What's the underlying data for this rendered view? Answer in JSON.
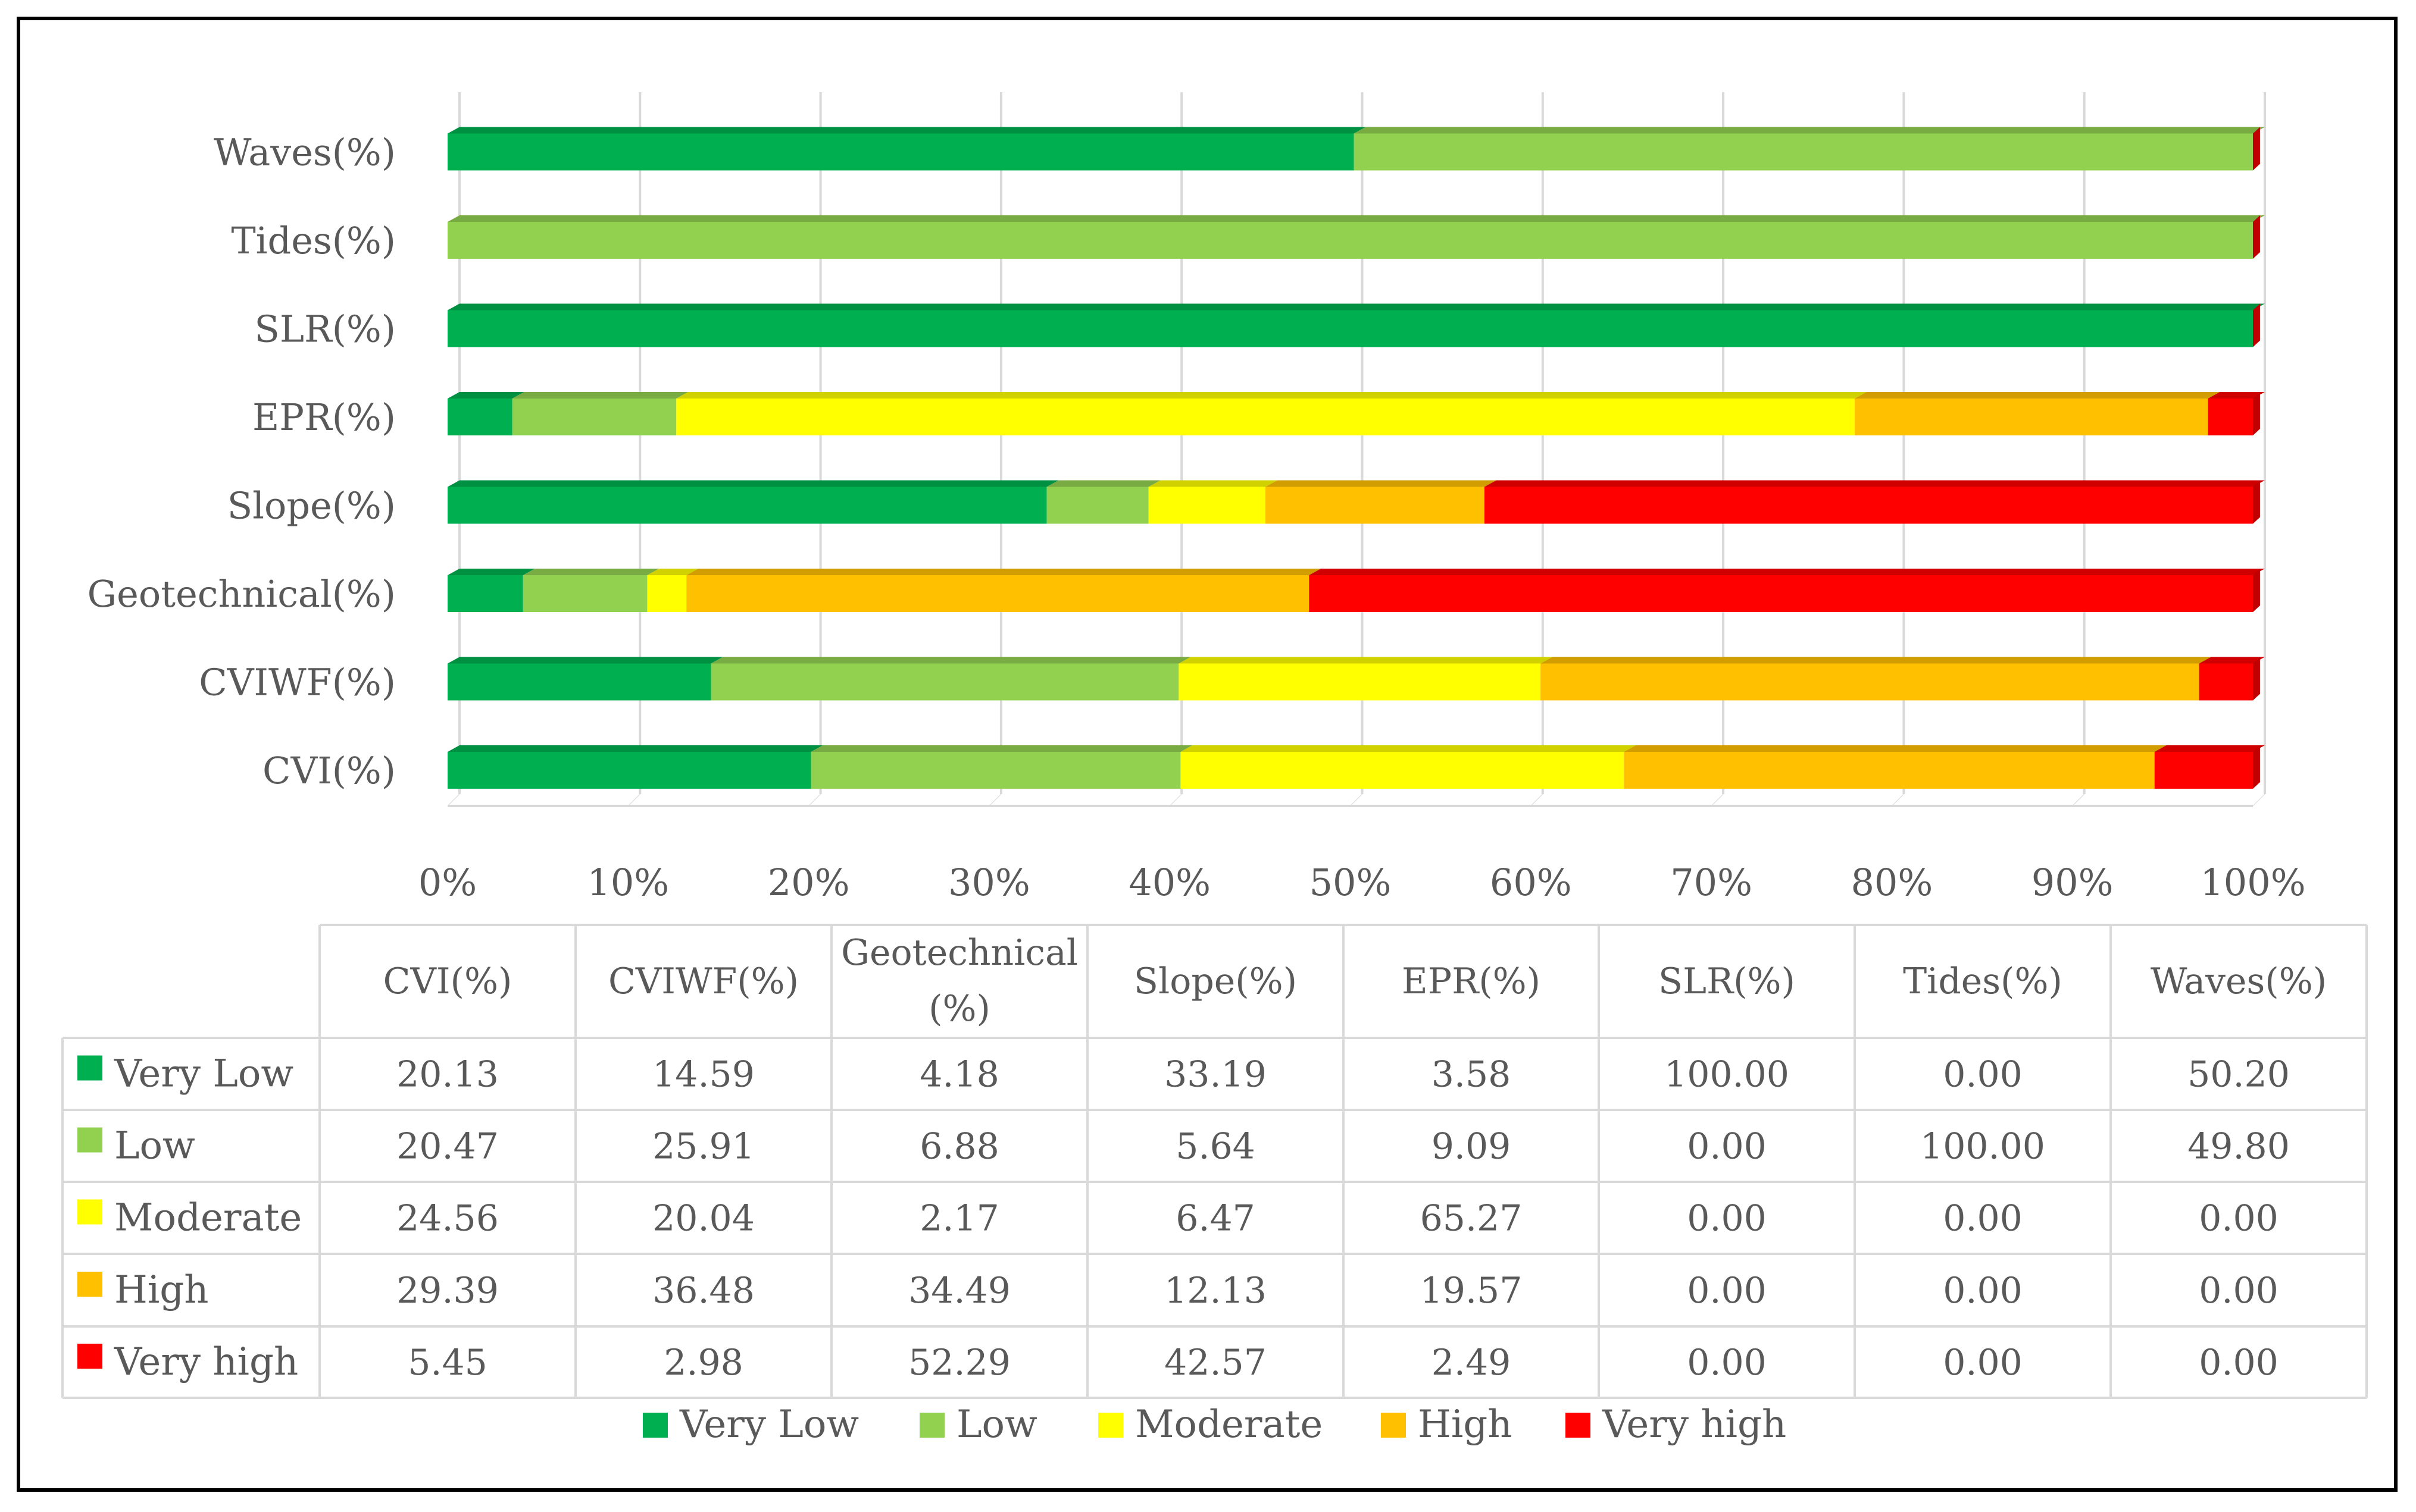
{
  "chart_data": {
    "type": "bar",
    "orientation": "horizontal",
    "stacked": "percent",
    "categories": [
      "CVI(%)",
      "CVIWF(%)",
      "Geotechnical(%)",
      "Slope(%)",
      "EPR(%)",
      "SLR(%)",
      "Tides(%)",
      "Waves(%)"
    ],
    "series": [
      {
        "name": "Very Low",
        "color": "#00b050",
        "values": [
          20.13,
          14.59,
          4.18,
          33.19,
          3.58,
          100.0,
          0.0,
          50.2
        ]
      },
      {
        "name": "Low",
        "color": "#92d050",
        "values": [
          20.47,
          25.91,
          6.88,
          5.64,
          9.09,
          0.0,
          100.0,
          49.8
        ]
      },
      {
        "name": "Moderate",
        "color": "#ffff00",
        "values": [
          24.56,
          20.04,
          2.17,
          6.47,
          65.27,
          0.0,
          0.0,
          0.0
        ]
      },
      {
        "name": "High",
        "color": "#ffc000",
        "values": [
          29.39,
          36.48,
          34.49,
          12.13,
          19.57,
          0.0,
          0.0,
          0.0
        ]
      },
      {
        "name": "Very high",
        "color": "#ff0000",
        "values": [
          5.45,
          2.98,
          52.29,
          42.57,
          2.49,
          0.0,
          0.0,
          0.0
        ]
      }
    ],
    "xticks": [
      "0%",
      "10%",
      "20%",
      "30%",
      "40%",
      "50%",
      "60%",
      "70%",
      "80%",
      "90%",
      "100%"
    ],
    "xlim": [
      0,
      100
    ],
    "grid": true,
    "legend": "bottom",
    "table": {
      "headers": [
        "CVI(%)",
        "CVIWF(%)",
        "Geotechnical",
        "(%)",
        "Slope(%)",
        "EPR(%)",
        "SLR(%)",
        "Tides(%)",
        "Waves(%)"
      ],
      "rows": [
        {
          "label": "Very Low",
          "cells": [
            "20.13",
            "14.59",
            "4.18",
            "33.19",
            "3.58",
            "100.00",
            "0.00",
            "50.20"
          ]
        },
        {
          "label": "Low",
          "cells": [
            "20.47",
            "25.91",
            "6.88",
            "5.64",
            "9.09",
            "0.00",
            "100.00",
            "49.80"
          ]
        },
        {
          "label": "Moderate",
          "cells": [
            "24.56",
            "20.04",
            "2.17",
            "6.47",
            "65.27",
            "0.00",
            "0.00",
            "0.00"
          ]
        },
        {
          "label": "High",
          "cells": [
            "29.39",
            "36.48",
            "34.49",
            "12.13",
            "19.57",
            "0.00",
            "0.00",
            "0.00"
          ]
        },
        {
          "label": "Very high",
          "cells": [
            "5.45",
            "2.98",
            "52.29",
            "42.57",
            "2.49",
            "0.00",
            "0.00",
            "0.00"
          ]
        }
      ]
    }
  }
}
